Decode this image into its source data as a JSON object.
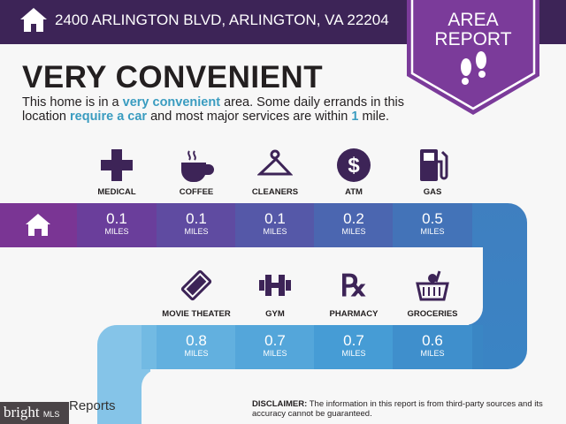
{
  "header": {
    "address": "2400 ARLINGTON BLVD, ARLINGTON, VA 22204",
    "badge_line1": "AREA",
    "badge_line2": "REPORT"
  },
  "summary": {
    "title": "VERY CONVENIENT",
    "text1": "This home is in a ",
    "hl1": "very convenient",
    "text2": " area. Some daily errands in this location ",
    "hl2": "require a car",
    "text3": " and most major services are within ",
    "hl3": "1",
    "text4": " mile."
  },
  "row1": [
    {
      "label": "MEDICAL",
      "value": "0.1",
      "unit": "MILES",
      "icon": "medical-cross-icon",
      "color": "#6a3e9b"
    },
    {
      "label": "COFFEE",
      "value": "0.1",
      "unit": "MILES",
      "icon": "coffee-cup-icon",
      "color": "#5f4ba1"
    },
    {
      "label": "CLEANERS",
      "value": "0.1",
      "unit": "MILES",
      "icon": "hanger-icon",
      "color": "#5558a8"
    },
    {
      "label": "ATM",
      "value": "0.2",
      "unit": "MILES",
      "icon": "dollar-icon",
      "color": "#4b66b0"
    },
    {
      "label": "GAS",
      "value": "0.5",
      "unit": "MILES",
      "icon": "gas-pump-icon",
      "color": "#4373b8"
    }
  ],
  "row2": [
    {
      "label": "MOVIE THEATER",
      "value": "0.8",
      "unit": "MILES",
      "icon": "ticket-icon",
      "color": "#62b0df"
    },
    {
      "label": "GYM",
      "value": "0.7",
      "unit": "MILES",
      "icon": "dumbbell-icon",
      "color": "#54a6da"
    },
    {
      "label": "PHARMACY",
      "value": "0.7",
      "unit": "MILES",
      "icon": "rx-icon",
      "color": "#469cd5"
    },
    {
      "label": "GROCERIES",
      "value": "0.6",
      "unit": "MILES",
      "icon": "basket-icon",
      "color": "#3f8fcc"
    }
  ],
  "footer": {
    "disclaimer_label": "DISCLAIMER:",
    "disclaimer_text": " The information in this report is from third-party sources and its accuracy cannot be guaranteed.",
    "logo": "bright",
    "logo_suffix": "MLS",
    "reports": "Reports"
  }
}
